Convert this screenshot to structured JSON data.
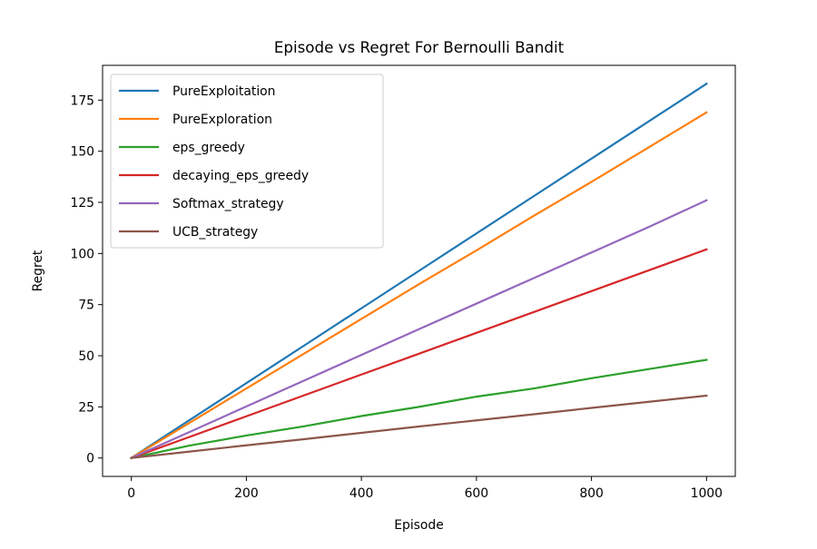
{
  "chart_data": {
    "type": "line",
    "title": "Episode vs Regret For Bernoulli Bandit",
    "xlabel": "Episode",
    "ylabel": "Regret",
    "xlim": [
      -50,
      1050
    ],
    "ylim": [
      -9,
      192
    ],
    "xticks": [
      0,
      200,
      400,
      600,
      800,
      1000
    ],
    "yticks": [
      0,
      25,
      50,
      75,
      100,
      125,
      150,
      175
    ],
    "xtick_labels": [
      "0",
      "200",
      "400",
      "600",
      "800",
      "1000"
    ],
    "ytick_labels": [
      "0",
      "25",
      "50",
      "75",
      "100",
      "125",
      "150",
      "175"
    ],
    "grid": false,
    "legend_position": "upper-left",
    "x": [
      0,
      100,
      200,
      300,
      400,
      500,
      600,
      700,
      800,
      900,
      1000
    ],
    "series": [
      {
        "name": "PureExploitation",
        "color": "#1f77b4",
        "values": [
          0,
          18.3,
          36.6,
          54.9,
          73.2,
          91.5,
          109.8,
          128.1,
          146.4,
          164.7,
          183
        ]
      },
      {
        "name": "PureExploration",
        "color": "#ff7f0e",
        "values": [
          0,
          17,
          34,
          51,
          68,
          85,
          101.5,
          118.5,
          135,
          152,
          169
        ]
      },
      {
        "name": "eps_greedy",
        "color": "#2ca02c",
        "values": [
          0,
          6,
          11,
          15.5,
          20.5,
          25,
          30,
          34,
          39,
          43.5,
          48
        ]
      },
      {
        "name": "decaying_eps_greedy",
        "color": "#d62728",
        "values": [
          0,
          10.2,
          20.4,
          30.6,
          40.8,
          51,
          61.2,
          71.4,
          81.6,
          91.8,
          102
        ]
      },
      {
        "name": "Softmax_strategy",
        "color": "#9467bd",
        "values": [
          0,
          12.6,
          25.2,
          37.8,
          50.4,
          63,
          75.5,
          88,
          100.5,
          113,
          126
        ]
      },
      {
        "name": "UCB_strategy",
        "color": "#8c564b",
        "values": [
          0,
          3.1,
          6.2,
          9.2,
          12.3,
          15.4,
          18.4,
          21.4,
          24.5,
          27.5,
          30.5
        ]
      }
    ]
  }
}
